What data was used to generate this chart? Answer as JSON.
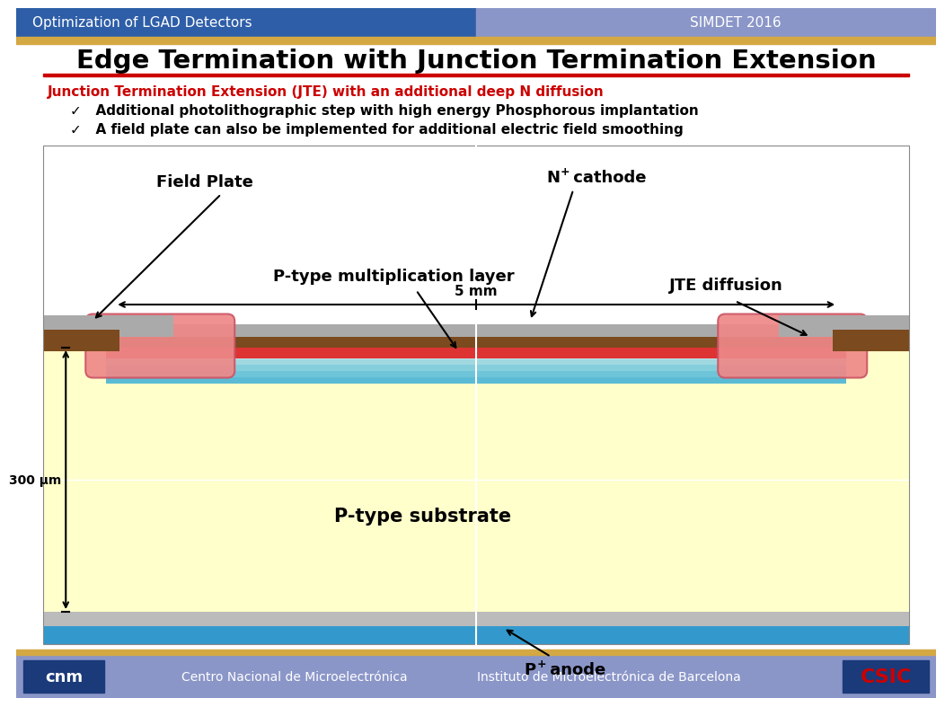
{
  "title": "Edge Termination with Junction Termination Extension",
  "header_left": "Optimization of LGAD Detectors",
  "header_right": "SIMDET 2016",
  "header_left_bg": "#2E5EA8",
  "header_right_bg": "#8B96C8",
  "header_text_color": "#FFFFFF",
  "gold_bar_color": "#D4A843",
  "red_line_color": "#CC0000",
  "subtitle_color": "#CC0000",
  "subtitle": "Junction Termination Extension (JTE) with an additional deep N diffusion",
  "bullet1": "Additional photolithographic step with high energy Phosphorous implantation",
  "bullet2": "A field plate can also be implemented for additional electric field smoothing",
  "footer_bg": "#8B96C8",
  "footer_text1": "Centro Nacional de Microelectrónica",
  "footer_text2": "Instituto de Microelectrónica de Barcelona",
  "body_bg": "#FFFFFF",
  "label_field_plate": "Field Plate",
  "label_n_cathode": "N",
  "label_n_cathode_sup": "+",
  "label_n_cathode2": " cathode",
  "label_5mm": "5 mm",
  "label_300um": "300 μm",
  "label_pmult": "P-type multiplication layer",
  "label_jte": "JTE diffusion",
  "label_psub": "P-type substrate",
  "label_panode": "P",
  "label_panode_sup": "+",
  "label_panode2": " anode"
}
